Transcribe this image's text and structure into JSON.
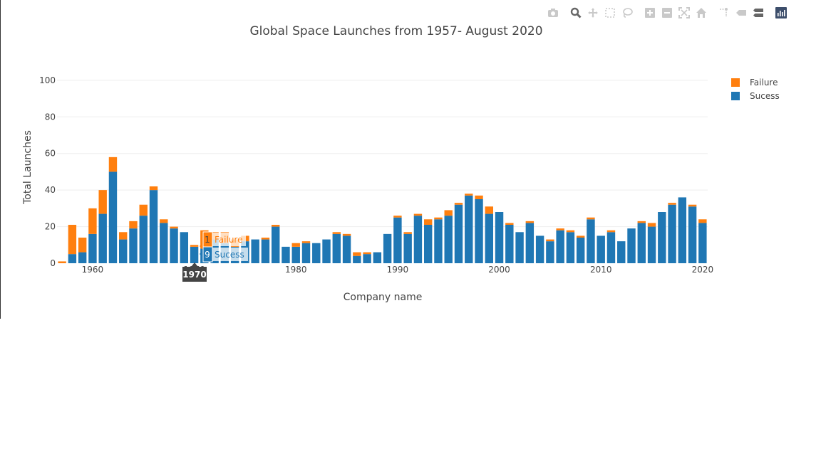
{
  "modebar": {
    "icons": [
      "camera-icon",
      "zoom-icon",
      "pan-icon",
      "box-select-icon",
      "lasso-icon",
      "zoom-in-icon",
      "zoom-out-icon",
      "autoscale-icon",
      "reset-axes-icon",
      "spike-lines-icon",
      "hover-closest-icon",
      "hover-compare-icon",
      "plotly-logo-icon"
    ]
  },
  "colors": {
    "failure": "#ff7f0e",
    "success": "#1f77b4"
  },
  "tooltip": {
    "x_label": "1970",
    "failure_value": "1",
    "failure_name": "Failure",
    "success_value": "9",
    "success_name": "Sucess"
  },
  "chart_data": {
    "type": "bar",
    "barmode": "stack",
    "title": "Global Space Launches from 1957- August 2020",
    "xlabel": "Company name",
    "ylabel": "Total Launches",
    "xlim": [
      1956.5,
      2020.5
    ],
    "ylim": [
      0,
      105
    ],
    "xticks": [
      1960,
      1970,
      1980,
      1990,
      2000,
      2010,
      2020
    ],
    "xtick_labels": [
      "1960",
      "1970",
      "1980",
      "1990",
      "2000",
      "2010",
      "2020"
    ],
    "yticks": [
      0,
      20,
      40,
      60,
      80,
      100
    ],
    "ytick_labels": [
      "0",
      "20",
      "40",
      "60",
      "80",
      "100"
    ],
    "grid": true,
    "legend_position": "top-right",
    "categories": [
      1957,
      1958,
      1959,
      1960,
      1961,
      1962,
      1963,
      1964,
      1965,
      1966,
      1967,
      1968,
      1969,
      1970,
      1971,
      1972,
      1973,
      1974,
      1975,
      1976,
      1977,
      1978,
      1979,
      1980,
      1981,
      1982,
      1983,
      1984,
      1985,
      1986,
      1987,
      1988,
      1989,
      1990,
      1991,
      1992,
      1993,
      1994,
      1995,
      1996,
      1997,
      1998,
      1999,
      2000,
      2001,
      2002,
      2003,
      2004,
      2005,
      2006,
      2007,
      2008,
      2009,
      2010,
      2011,
      2012,
      2013,
      2014,
      2015,
      2016,
      2017,
      2018,
      2019,
      2020
    ],
    "series": [
      {
        "name": "Sucess",
        "values": [
          0,
          5,
          6,
          16,
          27,
          50,
          13,
          19,
          26,
          40,
          22,
          19,
          17,
          9,
          8,
          13,
          11,
          9,
          12,
          13,
          13,
          20,
          9,
          9,
          11,
          11,
          13,
          16,
          15,
          4,
          5,
          6,
          16,
          25,
          16,
          26,
          21,
          24,
          26,
          32,
          37,
          35,
          27,
          28,
          21,
          17,
          22,
          15,
          12,
          18,
          17,
          14,
          24,
          15,
          17,
          12,
          19,
          22,
          20,
          28,
          32,
          36,
          31,
          22
        ]
      },
      {
        "name": "Failure",
        "values": [
          1,
          16,
          8,
          14,
          13,
          8,
          4,
          4,
          6,
          2,
          2,
          1,
          0,
          1,
          10,
          4,
          6,
          4,
          3,
          0,
          1,
          1,
          0,
          2,
          1,
          0,
          0,
          1,
          1,
          2,
          1,
          0,
          0,
          1,
          1,
          1,
          3,
          1,
          3,
          1,
          1,
          2,
          4,
          0,
          1,
          0,
          1,
          0,
          1,
          1,
          1,
          1,
          1,
          0,
          1,
          0,
          0,
          1,
          2,
          0,
          1,
          0,
          1,
          2
        ]
      }
    ]
  }
}
